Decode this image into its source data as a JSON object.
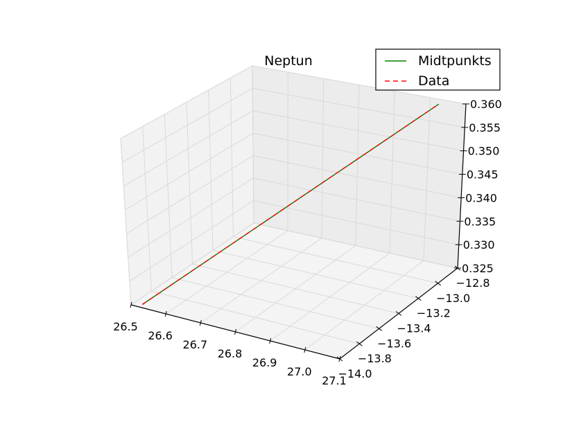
{
  "chart_data": {
    "type": "line",
    "projection": "3d",
    "title": "Neptun",
    "xlabel": "",
    "ylabel": "",
    "zlabel": "",
    "x_ticks": [
      "26.5",
      "26.6",
      "26.7",
      "26.8",
      "26.9",
      "27.0",
      "27.1"
    ],
    "y_ticks": [
      "−14.0",
      "−13.8",
      "−13.6",
      "−13.4",
      "−13.2",
      "−13.0",
      "−12.8"
    ],
    "z_ticks": [
      "0.325",
      "0.330",
      "0.335",
      "0.340",
      "0.345",
      "0.350",
      "0.355",
      "0.360"
    ],
    "xlim": [
      26.5,
      27.1
    ],
    "ylim": [
      -14.0,
      -12.8
    ],
    "zlim": [
      0.325,
      0.36
    ],
    "grid": true,
    "legend_position": "top-right",
    "series": [
      {
        "name": "Midtpunkts",
        "color": "#008000",
        "line_style": "solid",
        "x": [
          26.53,
          27.03
        ],
        "y": [
          -13.99,
          -12.82
        ],
        "z": [
          0.3255,
          0.3593
        ]
      },
      {
        "name": "Data",
        "color": "#ff0000",
        "line_style": "dashed",
        "x": [
          26.53,
          27.03
        ],
        "y": [
          -13.99,
          -12.82
        ],
        "z": [
          0.3255,
          0.3593
        ]
      }
    ]
  }
}
